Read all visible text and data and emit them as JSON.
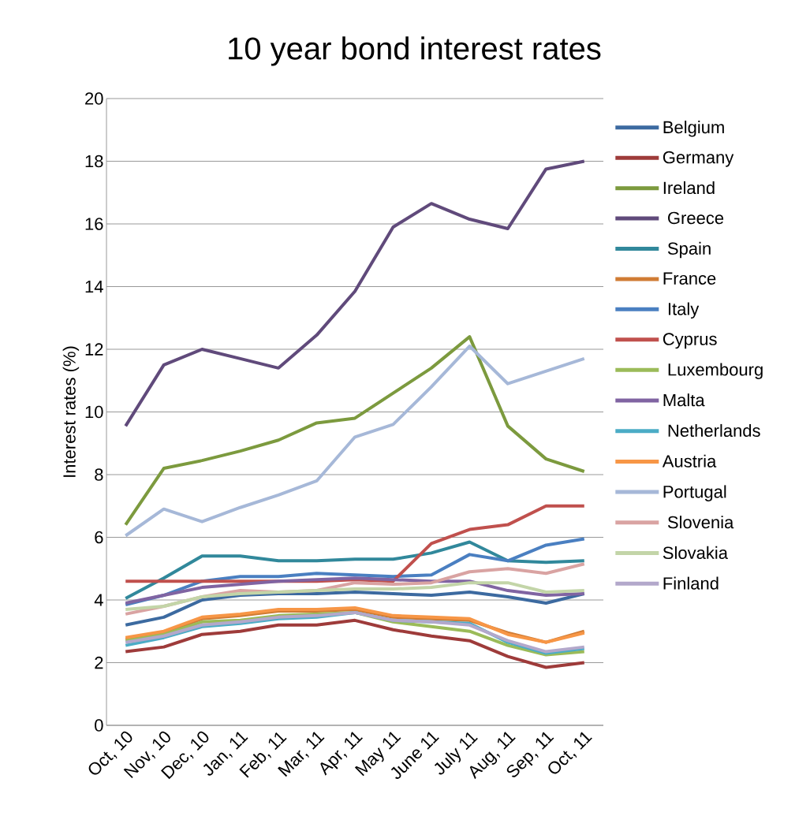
{
  "chart_data": {
    "type": "line",
    "title": "10 year bond interest rates",
    "ylabel": "Interest rates (%)",
    "categories": [
      "Oct, 10",
      "Nov, 10",
      "Dec, 10",
      "Jan, 11",
      "Feb, 11",
      "Mar, 11",
      "Apr, 11",
      "May 11",
      "June 11",
      "July 11",
      "Aug, 11",
      "Sep, 11",
      "Oct, 11"
    ],
    "ylim": [
      0,
      20
    ],
    "yticks": [
      0,
      2,
      4,
      6,
      8,
      10,
      12,
      14,
      16,
      18,
      20
    ],
    "grid": "y",
    "legend": "right",
    "marker": "none",
    "line_style": "solid",
    "series": [
      {
        "name": "Belgium",
        "color": "#3c6aa0",
        "values": [
          3.2,
          3.45,
          4.0,
          4.15,
          4.2,
          4.2,
          4.25,
          4.2,
          4.15,
          4.25,
          4.1,
          3.9,
          4.2
        ]
      },
      {
        "name": "Germany",
        "color": "#9e3b3a",
        "values": [
          2.35,
          2.5,
          2.9,
          3.0,
          3.2,
          3.2,
          3.35,
          3.05,
          2.85,
          2.7,
          2.2,
          1.85,
          2.0
        ]
      },
      {
        "name": "Ireland",
        "color": "#7c9a3e",
        "values": [
          6.4,
          8.2,
          8.45,
          8.75,
          9.1,
          9.65,
          9.8,
          10.6,
          11.4,
          12.4,
          9.55,
          8.5,
          8.1
        ]
      },
      {
        "name": " Greece",
        "color": "#604a7b",
        "values": [
          9.55,
          11.5,
          12.0,
          11.7,
          11.4,
          12.45,
          13.85,
          15.9,
          16.65,
          16.15,
          15.85,
          17.75,
          18.0
        ]
      },
      {
        "name": " Spain",
        "color": "#31889b",
        "values": [
          4.05,
          4.7,
          5.4,
          5.4,
          5.25,
          5.25,
          5.3,
          5.3,
          5.5,
          5.85,
          5.25,
          5.2,
          5.25
        ]
      },
      {
        "name": "France",
        "color": "#d07c34",
        "values": [
          2.75,
          2.95,
          3.4,
          3.5,
          3.65,
          3.65,
          3.7,
          3.45,
          3.4,
          3.35,
          2.95,
          2.65,
          3.0
        ]
      },
      {
        "name": " Italy",
        "color": "#4a7fc1",
        "values": [
          3.85,
          4.15,
          4.6,
          4.75,
          4.75,
          4.85,
          4.8,
          4.75,
          4.8,
          5.45,
          5.25,
          5.75,
          5.95
        ]
      },
      {
        "name": "Cyprus",
        "color": "#c0504d",
        "values": [
          4.6,
          4.6,
          4.6,
          4.6,
          4.6,
          4.6,
          4.65,
          4.6,
          5.8,
          6.25,
          6.4,
          7.0,
          7.0
        ]
      },
      {
        "name": " Luxembourg",
        "color": "#9bbb59",
        "values": [
          2.7,
          2.9,
          3.3,
          3.35,
          3.5,
          3.55,
          3.6,
          3.3,
          3.15,
          3.0,
          2.55,
          2.25,
          2.35
        ]
      },
      {
        "name": "Malta",
        "color": "#8064a2",
        "values": [
          3.9,
          4.15,
          4.4,
          4.5,
          4.6,
          4.65,
          4.7,
          4.65,
          4.6,
          4.6,
          4.3,
          4.15,
          4.2
        ]
      },
      {
        "name": " Netherlands",
        "color": "#4bacc6",
        "values": [
          2.55,
          2.8,
          3.15,
          3.25,
          3.4,
          3.45,
          3.6,
          3.35,
          3.3,
          3.25,
          2.65,
          2.3,
          2.45
        ]
      },
      {
        "name": "Austria",
        "color": "#f79646",
        "values": [
          2.8,
          3.0,
          3.45,
          3.55,
          3.7,
          3.7,
          3.75,
          3.5,
          3.45,
          3.4,
          2.9,
          2.65,
          2.95
        ]
      },
      {
        "name": "Portugal",
        "color": "#a6b8d8",
        "values": [
          6.05,
          6.9,
          6.5,
          6.95,
          7.35,
          7.8,
          9.2,
          9.6,
          10.8,
          12.1,
          10.9,
          11.3,
          11.7
        ]
      },
      {
        "name": " Slovenia",
        "color": "#d9a3a2",
        "values": [
          3.55,
          3.8,
          4.1,
          4.3,
          4.25,
          4.3,
          4.55,
          4.5,
          4.55,
          4.9,
          5.0,
          4.85,
          5.15
        ]
      },
      {
        "name": "Slovakia",
        "color": "#c3d5a8",
        "values": [
          3.7,
          3.8,
          4.1,
          4.2,
          4.25,
          4.3,
          4.35,
          4.35,
          4.4,
          4.55,
          4.55,
          4.25,
          4.3
        ]
      },
      {
        "name": "Finland",
        "color": "#b3a8cb",
        "values": [
          2.65,
          2.85,
          3.2,
          3.3,
          3.45,
          3.5,
          3.6,
          3.35,
          3.3,
          3.2,
          2.7,
          2.35,
          2.5
        ]
      }
    ]
  }
}
